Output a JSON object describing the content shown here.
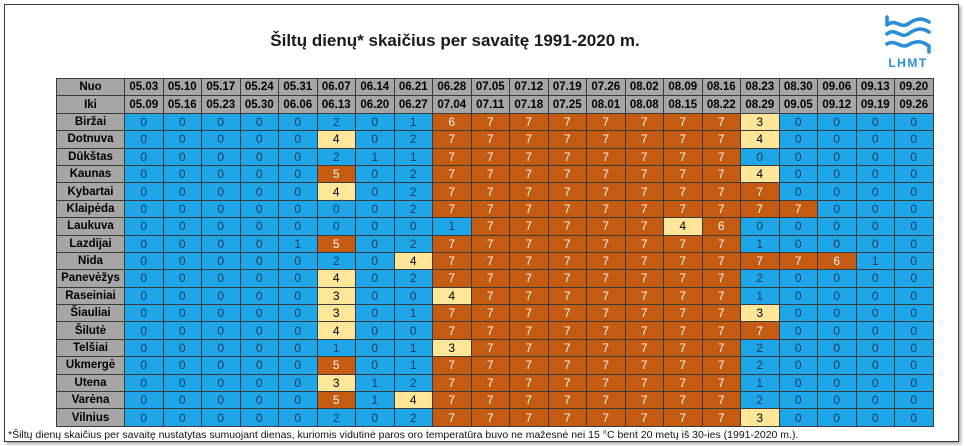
{
  "chart_data": {
    "type": "heatmap",
    "title": "Šiltų dienų* skaičius per savaitę 1991-2020 m.",
    "row_header_from": "Nuo",
    "row_header_to": "Iki",
    "week_from": [
      "05.03",
      "05.10",
      "05.17",
      "05.24",
      "05.31",
      "06.07",
      "06.14",
      "06.21",
      "06.28",
      "07.05",
      "07.12",
      "07.19",
      "07.26",
      "08.02",
      "08.09",
      "08.16",
      "08.23",
      "08.30",
      "09.06",
      "09.13",
      "09.20"
    ],
    "week_to": [
      "05.09",
      "05.16",
      "05.23",
      "05.30",
      "06.06",
      "06.13",
      "06.20",
      "06.27",
      "07.04",
      "07.11",
      "07.18",
      "07.25",
      "08.01",
      "08.08",
      "08.15",
      "08.22",
      "08.29",
      "09.05",
      "09.12",
      "09.19",
      "09.26"
    ],
    "stations": [
      "Biržai",
      "Dotnuva",
      "Dūkštas",
      "Kaunas",
      "Kybartai",
      "Klaipėda",
      "Laukuva",
      "Lazdijai",
      "Nida",
      "Panevėžys",
      "Raseiniai",
      "Šiauliai",
      "Šilutė",
      "Telšiai",
      "Ukmergė",
      "Utena",
      "Varėna",
      "Vilnius"
    ],
    "values": [
      [
        0,
        0,
        0,
        0,
        0,
        2,
        0,
        1,
        6,
        7,
        7,
        7,
        7,
        7,
        7,
        7,
        3,
        0,
        0,
        0,
        0
      ],
      [
        0,
        0,
        0,
        0,
        0,
        4,
        0,
        2,
        7,
        7,
        7,
        7,
        7,
        7,
        7,
        7,
        4,
        0,
        0,
        0,
        0
      ],
      [
        0,
        0,
        0,
        0,
        0,
        2,
        1,
        1,
        7,
        7,
        7,
        7,
        7,
        7,
        7,
        7,
        0,
        0,
        0,
        0,
        0
      ],
      [
        0,
        0,
        0,
        0,
        0,
        5,
        0,
        2,
        7,
        7,
        7,
        7,
        7,
        7,
        7,
        7,
        4,
        0,
        0,
        0,
        0
      ],
      [
        0,
        0,
        0,
        0,
        0,
        4,
        0,
        2,
        7,
        7,
        7,
        7,
        7,
        7,
        7,
        7,
        7,
        0,
        0,
        0,
        0
      ],
      [
        0,
        0,
        0,
        0,
        0,
        0,
        0,
        2,
        7,
        7,
        7,
        7,
        7,
        7,
        7,
        7,
        7,
        7,
        0,
        0,
        0
      ],
      [
        0,
        0,
        0,
        0,
        0,
        0,
        0,
        0,
        1,
        7,
        7,
        7,
        7,
        7,
        4,
        6,
        0,
        0,
        0,
        0,
        0
      ],
      [
        0,
        0,
        0,
        0,
        1,
        5,
        0,
        2,
        7,
        7,
        7,
        7,
        7,
        7,
        7,
        7,
        1,
        0,
        0,
        0,
        0
      ],
      [
        0,
        0,
        0,
        0,
        0,
        2,
        0,
        4,
        7,
        7,
        7,
        7,
        7,
        7,
        7,
        7,
        7,
        7,
        6,
        1,
        0
      ],
      [
        0,
        0,
        0,
        0,
        0,
        4,
        0,
        2,
        7,
        7,
        7,
        7,
        7,
        7,
        7,
        7,
        2,
        0,
        0,
        0,
        0
      ],
      [
        0,
        0,
        0,
        0,
        0,
        3,
        0,
        0,
        4,
        7,
        7,
        7,
        7,
        7,
        7,
        7,
        1,
        0,
        0,
        0,
        0
      ],
      [
        0,
        0,
        0,
        0,
        0,
        3,
        0,
        1,
        7,
        7,
        7,
        7,
        7,
        7,
        7,
        7,
        3,
        0,
        0,
        0,
        0
      ],
      [
        0,
        0,
        0,
        0,
        0,
        4,
        0,
        0,
        7,
        7,
        7,
        7,
        7,
        7,
        7,
        7,
        7,
        0,
        0,
        0,
        0
      ],
      [
        0,
        0,
        0,
        0,
        0,
        1,
        0,
        1,
        3,
        7,
        7,
        7,
        7,
        7,
        7,
        7,
        2,
        0,
        0,
        0,
        0
      ],
      [
        0,
        0,
        0,
        0,
        0,
        5,
        0,
        1,
        7,
        7,
        7,
        7,
        7,
        7,
        7,
        7,
        2,
        0,
        0,
        0,
        0
      ],
      [
        0,
        0,
        0,
        0,
        0,
        3,
        1,
        2,
        7,
        7,
        7,
        7,
        7,
        7,
        7,
        7,
        1,
        0,
        0,
        0,
        0
      ],
      [
        0,
        0,
        0,
        0,
        0,
        5,
        1,
        4,
        7,
        7,
        7,
        7,
        7,
        7,
        7,
        7,
        2,
        0,
        0,
        0,
        0
      ],
      [
        0,
        0,
        0,
        0,
        0,
        2,
        0,
        2,
        7,
        7,
        7,
        7,
        7,
        7,
        7,
        7,
        3,
        0,
        0,
        0,
        0
      ]
    ]
  },
  "logo": {
    "text": "LHMT",
    "icon": "lhmt-wave-logo-icon"
  },
  "colors": {
    "cell_low": "#1ea6e8",
    "cell_mid": "#ffe699",
    "cell_high": "#c55a11",
    "text_low": "#1d3a5c",
    "text_mid": "#000000",
    "text_high": "#f7f7f7",
    "header_bg": "#a6a6a6",
    "logo": "#2a8fd8"
  },
  "footnote": "*Šiltų dienų skaičius per savaitę nustatytas sumuojant dienas, kuriomis vidutinė paros oro temperatūra buvo ne mažesnė nei 15 °C bent 20 metų iš 30-ies (1991-2020 m.)."
}
